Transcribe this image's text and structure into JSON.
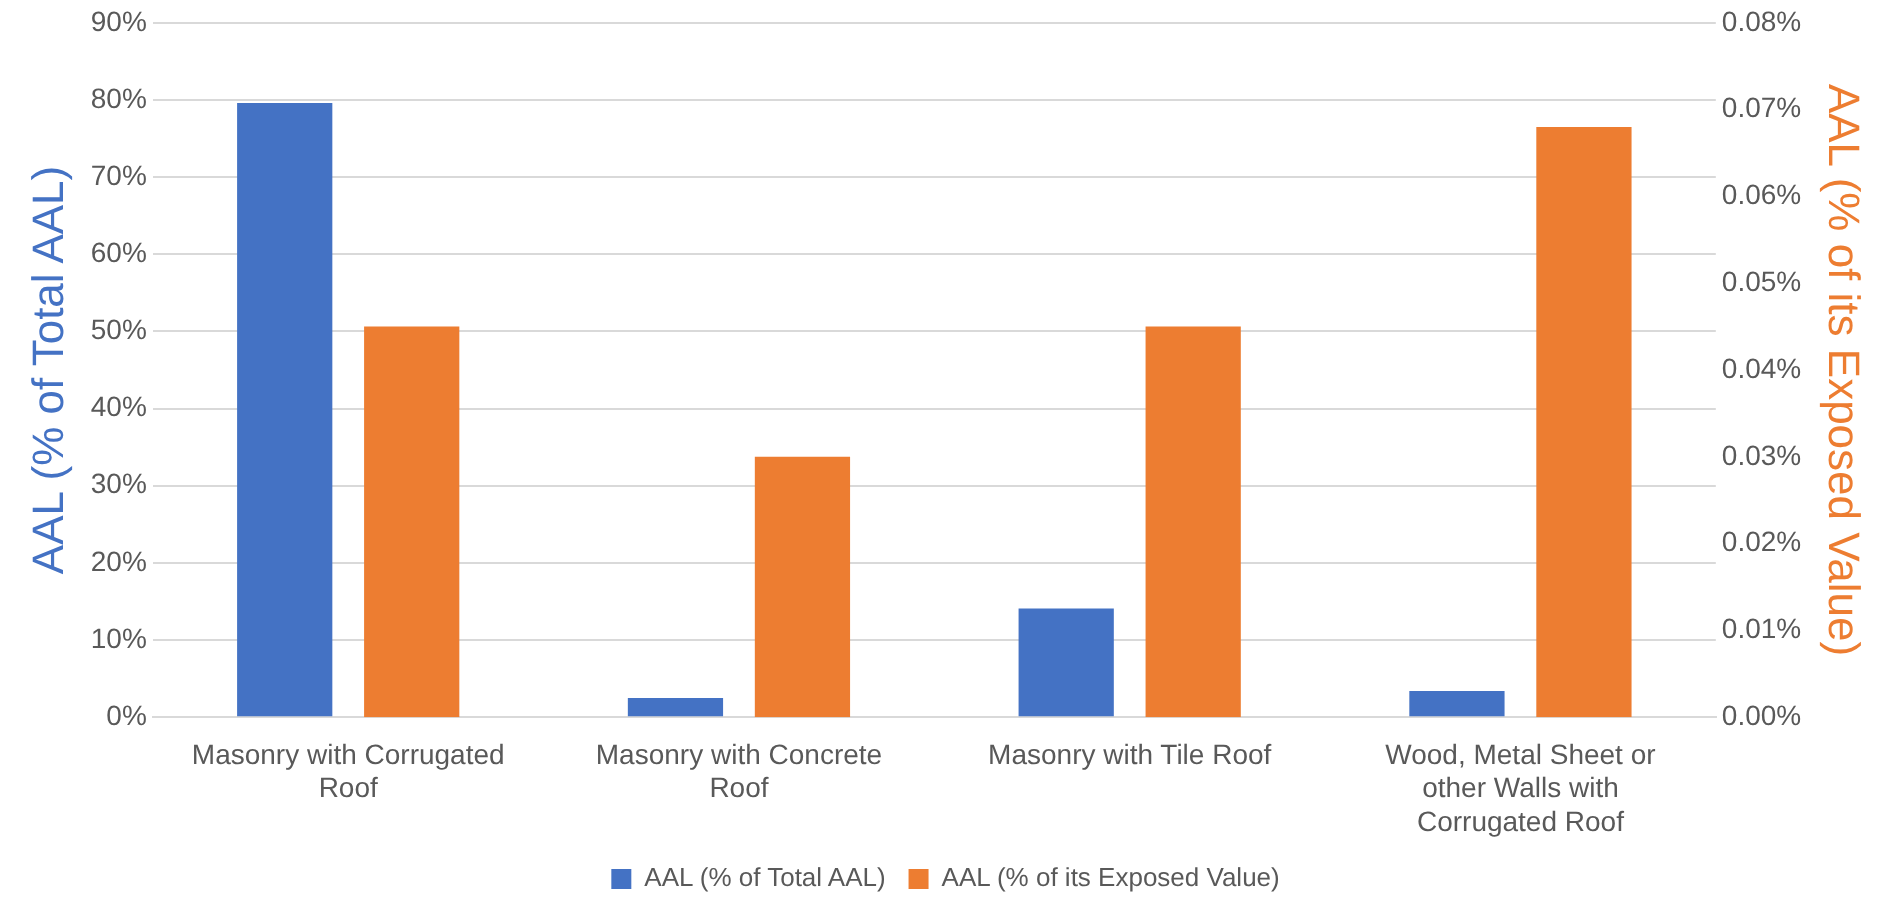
{
  "chart_data": {
    "type": "bar",
    "categories": [
      "Masonry with Corrugated Roof",
      "Masonry with Concrete Roof",
      "Masonry with Tile Roof",
      "Wood, Metal Sheet or other Walls with Corrugated Roof"
    ],
    "series": [
      {
        "name": "AAL (% of Total AAL)",
        "color": "#4472c4",
        "values": [
          79.6,
          2.5,
          14.1,
          3.4
        ]
      },
      {
        "name": "AAL (% of its Exposed Value)",
        "color": "#ed7d31",
        "axis": "y2",
        "values": [
          0.045,
          0.03,
          0.045,
          0.068
        ]
      }
    ],
    "ylabel": "AAL (% of Total AAL)",
    "y2label": "AAL (% of its Exposed Value)",
    "ylim": [
      0,
      90
    ],
    "yticks": [
      {
        "value": 0,
        "label": "0%"
      },
      {
        "value": 10,
        "label": "10%"
      },
      {
        "value": 20,
        "label": "20%"
      },
      {
        "value": 30,
        "label": "30%"
      },
      {
        "value": 40,
        "label": "40%"
      },
      {
        "value": 50,
        "label": "50%"
      },
      {
        "value": 60,
        "label": "60%"
      },
      {
        "value": 70,
        "label": "70%"
      },
      {
        "value": 80,
        "label": "80%"
      },
      {
        "value": 90,
        "label": "90%"
      }
    ],
    "y2lim": [
      0,
      0.08
    ],
    "y2ticks": [
      {
        "value": 0,
        "label": "0.00%"
      },
      {
        "value": 0.01,
        "label": "0.01%"
      },
      {
        "value": 0.02,
        "label": "0.02%"
      },
      {
        "value": 0.03,
        "label": "0.03%"
      },
      {
        "value": 0.04,
        "label": "0.04%"
      },
      {
        "value": 0.05,
        "label": "0.05%"
      },
      {
        "value": 0.06,
        "label": "0.06%"
      },
      {
        "value": 0.07,
        "label": "0.07%"
      },
      {
        "value": 0.08,
        "label": "0.08%"
      }
    ],
    "grid": "y",
    "legend": "bottom"
  }
}
